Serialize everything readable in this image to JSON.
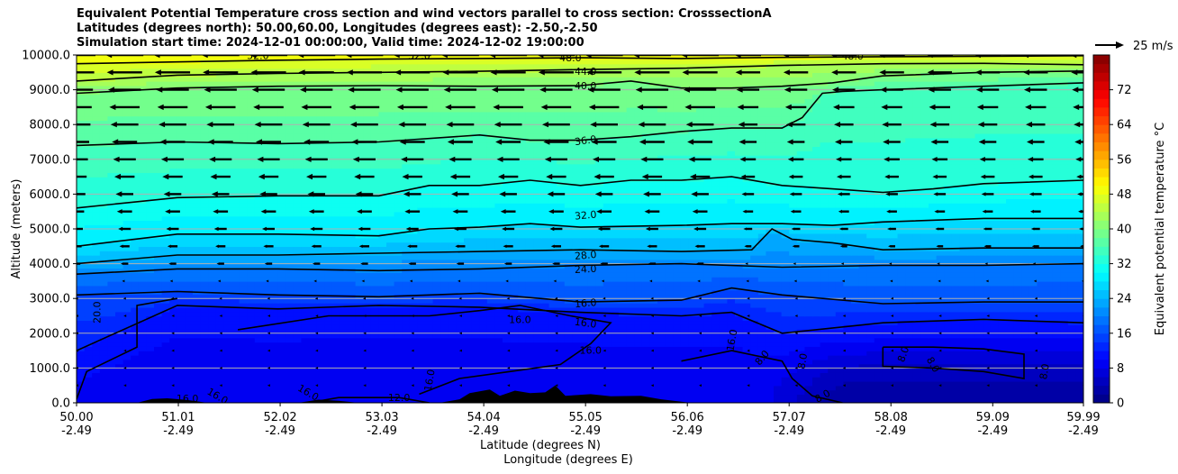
{
  "chart_data": {
    "type": "contourf",
    "title_lines": [
      "Equivalent Potential Temperature cross section and wind vectors parallel to cross section: CrosssectionA",
      "Latitudes (degrees north): 50.00,60.00, Longitudes (degrees east): -2.50,-2.50",
      "Simulation start time: 2024-12-01 00:00:00, Valid time: 2024-12-02 19:00:00"
    ],
    "xlabel": "Latitude (degrees N)",
    "xlabel2": "Longitude (degrees E)",
    "ylabel": "Altitude (meters)",
    "xlim": [
      50.0,
      59.99
    ],
    "ylim": [
      0,
      10000
    ],
    "x_ticks": [
      {
        "lat": "50.00",
        "lon": "-2.49",
        "value": 50.0
      },
      {
        "lat": "51.01",
        "lon": "-2.49",
        "value": 51.01
      },
      {
        "lat": "52.02",
        "lon": "-2.49",
        "value": 52.02
      },
      {
        "lat": "53.03",
        "lon": "-2.49",
        "value": 53.03
      },
      {
        "lat": "54.04",
        "lon": "-2.49",
        "value": 54.04
      },
      {
        "lat": "55.05",
        "lon": "-2.49",
        "value": 55.05
      },
      {
        "lat": "56.06",
        "lon": "-2.49",
        "value": 56.06
      },
      {
        "lat": "57.07",
        "lon": "-2.49",
        "value": 57.07
      },
      {
        "lat": "58.08",
        "lon": "-2.49",
        "value": 58.08
      },
      {
        "lat": "59.09",
        "lon": "-2.49",
        "value": 59.09
      },
      {
        "lat": "59.99",
        "lon": "-2.49",
        "value": 59.99
      }
    ],
    "y_ticks": [
      {
        "label": "0.0",
        "value": 0
      },
      {
        "label": "1000.0",
        "value": 1000
      },
      {
        "label": "2000.0",
        "value": 2000
      },
      {
        "label": "3000.0",
        "value": 3000
      },
      {
        "label": "4000.0",
        "value": 4000
      },
      {
        "label": "5000.0",
        "value": 5000
      },
      {
        "label": "6000.0",
        "value": 6000
      },
      {
        "label": "7000.0",
        "value": 7000
      },
      {
        "label": "8000.0",
        "value": 8000
      },
      {
        "label": "9000.0",
        "value": 9000
      },
      {
        "label": "10000.0",
        "value": 10000
      }
    ],
    "colorbar": {
      "label": "Equivalent potential temperature $^\\circ$C",
      "label_display": "Equivalent potential temperature °C",
      "min": 0,
      "max": 80,
      "step": 2,
      "ticks": [
        "0",
        "8",
        "16",
        "24",
        "32",
        "40",
        "48",
        "56",
        "64",
        "72"
      ],
      "tick_values": [
        0,
        8,
        16,
        24,
        32,
        40,
        48,
        56,
        64,
        72
      ]
    },
    "quiver_key": {
      "label": "25 m/s",
      "value": 25
    },
    "contour_labels": [
      "52.0",
      "52.0",
      "48.0",
      "48.0",
      "44.0",
      "40.0",
      "36.0",
      "32.0",
      "28.0",
      "24.0",
      "20.0",
      "16.0",
      "16.0",
      "16.0",
      "16.0",
      "16.0",
      "16.0",
      "16.0",
      "16.0",
      "16.0",
      "12.0",
      "8.0",
      "8.0",
      "8.0",
      "8.0",
      "8.0",
      "8.0"
    ],
    "contour_lines": [
      {
        "level": 48,
        "lat": [
          50.0,
          51.0,
          52.0,
          53.0,
          54.0,
          55.0,
          56.0,
          57.0,
          58.0,
          59.0,
          59.99
        ],
        "alt": [
          9750,
          9800,
          9850,
          9880,
          9900,
          9920,
          9900,
          9930,
          9950,
          9960,
          9980
        ]
      },
      {
        "level": 44,
        "lat": [
          50.0,
          51.0,
          52.0,
          53.0,
          54.0,
          55.0,
          56.0,
          57.0,
          58.0,
          59.0,
          59.99
        ],
        "alt": [
          9250,
          9420,
          9470,
          9500,
          9530,
          9580,
          9620,
          9700,
          9750,
          9760,
          9720
        ]
      },
      {
        "level": 40,
        "lat": [
          50.0,
          51.0,
          52.0,
          53.0,
          54.0,
          55.0,
          55.5,
          56.0,
          56.5,
          57.0,
          57.5,
          58.0,
          59.0,
          59.99
        ],
        "alt": [
          8900,
          9050,
          9100,
          9120,
          9100,
          9120,
          9250,
          9050,
          9050,
          9100,
          9200,
          9400,
          9500,
          9540
        ]
      },
      {
        "level": 36,
        "lat": [
          50.0,
          51.0,
          52.0,
          53.0,
          54.0,
          54.5,
          55.0,
          55.5,
          56.0,
          56.5,
          57.0,
          57.2,
          57.4,
          57.6,
          58.0,
          59.0,
          59.99
        ],
        "alt": [
          7400,
          7500,
          7450,
          7500,
          7700,
          7550,
          7550,
          7650,
          7800,
          7900,
          7900,
          8200,
          8900,
          8950,
          9000,
          9100,
          9200
        ]
      },
      {
        "level": 32,
        "lat": [
          50.0,
          51.0,
          52.0,
          53.0,
          53.5,
          54.0,
          54.5,
          55.0,
          55.5,
          56.0,
          56.5,
          57.0,
          57.5,
          58.0,
          58.5,
          59.0,
          59.99
        ],
        "alt": [
          5600,
          5900,
          5950,
          5950,
          6250,
          6250,
          6400,
          6250,
          6400,
          6400,
          6500,
          6250,
          6150,
          6050,
          6150,
          6300,
          6400
        ]
      },
      {
        "level": 28,
        "lat": [
          50.0,
          51.0,
          52.0,
          53.0,
          53.5,
          54.0,
          54.5,
          55.0,
          56.0,
          56.5,
          57.0,
          57.5,
          58.0,
          59.0,
          59.99
        ],
        "alt": [
          4500,
          4850,
          4850,
          4800,
          5000,
          5050,
          5150,
          5050,
          5100,
          5150,
          5150,
          5100,
          5200,
          5300,
          5300
        ]
      },
      {
        "level": 24,
        "lat": [
          50.0,
          51.0,
          52.0,
          53.0,
          54.0,
          55.0,
          56.0,
          56.7,
          56.9,
          57.1,
          57.5,
          58.0,
          59.0,
          59.99
        ],
        "alt": [
          4000,
          4250,
          4250,
          4300,
          4350,
          4400,
          4350,
          4400,
          5000,
          4700,
          4600,
          4400,
          4450,
          4450
        ]
      },
      {
        "level": 20,
        "lat": [
          50.0,
          51.0,
          52.0,
          53.0,
          54.0,
          55.0,
          56.0,
          57.0,
          58.0,
          59.0,
          59.99
        ],
        "alt": [
          3700,
          3850,
          3850,
          3800,
          3850,
          3950,
          4000,
          3900,
          3950,
          3950,
          4000
        ]
      },
      {
        "level": 16,
        "lat": [
          50.0,
          51.0,
          52.0,
          53.0,
          54.0,
          55.0,
          56.0,
          56.5,
          57.0,
          58.0,
          59.0,
          59.99
        ],
        "alt": [
          3100,
          3200,
          3100,
          3050,
          3150,
          2900,
          2950,
          3300,
          3100,
          2850,
          2900,
          2900
        ]
      },
      {
        "level": 12,
        "lat": [
          50.0,
          51.0,
          52.0,
          53.0,
          54.0,
          55.0,
          56.0,
          56.5,
          57.0,
          58.0,
          59.0,
          59.99
        ],
        "alt": [
          1500,
          2800,
          2700,
          2800,
          2750,
          2600,
          2500,
          2600,
          2000,
          2300,
          2400,
          2300
        ]
      },
      {
        "level": 8,
        "lat": [
          58.0,
          58.5,
          59.0,
          59.4,
          59.4,
          59.0,
          58.5,
          58.0,
          58.0
        ],
        "alt": [
          1600,
          1600,
          1550,
          1400,
          700,
          900,
          1000,
          1050,
          1600
        ]
      }
    ],
    "wind": {
      "u_range_ms": [
        -25,
        0
      ],
      "note": "arrows point toward decreasing latitude"
    }
  }
}
